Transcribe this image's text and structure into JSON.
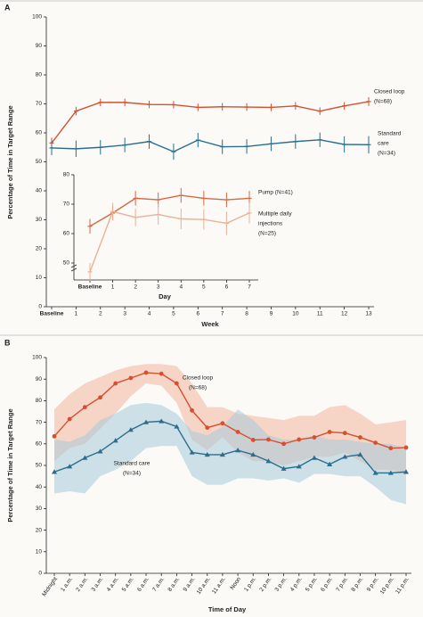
{
  "chart_data": [
    {
      "type": "line",
      "panel_label": "A",
      "y_label": "Percentage of Time in Target Range",
      "x_label": "Week",
      "categories": [
        "Baseline",
        "1",
        "2",
        "3",
        "4",
        "5",
        "6",
        "7",
        "8",
        "9",
        "10",
        "11",
        "12",
        "13"
      ],
      "ylim": [
        0,
        100
      ],
      "yticks": [
        0,
        10,
        20,
        30,
        40,
        50,
        60,
        70,
        80,
        90,
        100
      ],
      "series": [
        {
          "label_lines": [
            "Closed loop",
            "(N=68)"
          ],
          "color": "#d4502f",
          "marker": "tick",
          "values": [
            56.5,
            67.5,
            70.5,
            70.5,
            69.8,
            69.7,
            68.8,
            69,
            68.9,
            68.8,
            69.3,
            67.5,
            69.3,
            70.8
          ],
          "errors": [
            1.8,
            1.5,
            1.3,
            1.3,
            1.3,
            1.3,
            1.3,
            1.3,
            1.3,
            1.3,
            1.3,
            1.3,
            1.3,
            1.5
          ]
        },
        {
          "label_lines": [
            "Standard",
            "care",
            "(N=34)"
          ],
          "color": "#2a6e8e",
          "marker": "tick",
          "values": [
            54.8,
            54.5,
            55,
            55.8,
            57,
            53.5,
            57.5,
            55.2,
            55.3,
            56.2,
            57,
            57.6,
            56,
            55.9
          ],
          "errors": [
            2.5,
            2.8,
            2.5,
            2.5,
            2.5,
            2.8,
            2.5,
            2.5,
            2.5,
            2.5,
            2.5,
            2.5,
            2.8,
            3
          ]
        }
      ]
    },
    {
      "type": "line",
      "x_label": "Day",
      "categories": [
        "Baseline",
        "1",
        "2",
        "3",
        "4",
        "5",
        "6",
        "7"
      ],
      "ylim": [
        45,
        80
      ],
      "yticks": [
        50,
        60,
        70,
        80
      ],
      "series": [
        {
          "label_lines": [
            "Pump (N=41)"
          ],
          "color": "#d46a45",
          "marker": "tick",
          "values": [
            62.5,
            67,
            72,
            71.5,
            73,
            72,
            71.5,
            72
          ],
          "errors": [
            2.5,
            2.5,
            2.5,
            2.5,
            2.5,
            2.5,
            2.5,
            2.5
          ]
        },
        {
          "label_lines": [
            "Multiple daily",
            "injections",
            "(N=25)"
          ],
          "color": "#e8b198",
          "marker": "tick",
          "values": [
            47,
            67.5,
            65.5,
            66.5,
            65,
            64.8,
            63.5,
            67
          ],
          "errors": [
            3,
            3,
            3,
            3.5,
            3.5,
            3.5,
            4,
            3.5
          ]
        }
      ]
    },
    {
      "type": "line",
      "panel_label": "B",
      "y_label": "Percentage of Time in Target Range",
      "x_label": "Time of Day",
      "categories": [
        "Midnight",
        "1 a.m.",
        "2 a.m.",
        "3 a.m.",
        "4 a.m.",
        "5 a.m.",
        "6 a.m.",
        "7 a.m.",
        "8 a.m.",
        "9 a.m.",
        "10 a.m.",
        "11 a.m.",
        "Noon",
        "1 p.m.",
        "2 p.m.",
        "3 p.m.",
        "4 p.m.",
        "5 p.m.",
        "6 p.m.",
        "7 p.m.",
        "8 p.m.",
        "9 p.m.",
        "10 p.m.",
        "11 p.m."
      ],
      "ylim": [
        0,
        100
      ],
      "yticks": [
        0,
        10,
        20,
        30,
        40,
        50,
        60,
        70,
        80,
        90,
        100
      ],
      "series": [
        {
          "label_lines": [
            "Closed loop",
            "(N=68)"
          ],
          "color": "#d4502f",
          "band_color": "#f2b6a0",
          "marker": "circle",
          "values": [
            63.5,
            71.5,
            77,
            81.5,
            88,
            90.5,
            93,
            92.5,
            88,
            75.5,
            67.5,
            69.5,
            65.5,
            61.8,
            62,
            60,
            62,
            63,
            65.5,
            65,
            63,
            60.5,
            58,
            58.3
          ],
          "upper": [
            76,
            83,
            88,
            91,
            94,
            96,
            97,
            97,
            96,
            88,
            77,
            77,
            74,
            73,
            72,
            71,
            73,
            73,
            77,
            78,
            74,
            69,
            70,
            71
          ],
          "lower": [
            52,
            58,
            60,
            67,
            74,
            82,
            88,
            87,
            79,
            62,
            57,
            63,
            56,
            52,
            52,
            50,
            52,
            54,
            54,
            56,
            52,
            48,
            48,
            46
          ]
        },
        {
          "label_lines": [
            "Standard care",
            "(N=34)"
          ],
          "color": "#2a6e8e",
          "band_color": "#a9cadb",
          "marker": "triangle",
          "values": [
            47,
            49.5,
            53.5,
            56.5,
            61.5,
            66.5,
            70,
            70.5,
            68,
            56,
            55,
            55,
            57,
            55,
            52,
            48.5,
            49.5,
            53.5,
            50.5,
            54,
            55,
            46.5,
            46.5,
            47
          ],
          "upper": [
            62,
            61,
            64,
            71,
            74,
            78,
            79,
            78,
            74,
            66,
            64,
            68,
            76,
            71,
            64,
            62,
            62,
            64,
            62,
            62,
            61,
            60,
            60,
            58
          ],
          "lower": [
            37,
            38,
            37,
            45,
            48,
            52,
            58,
            59,
            59,
            45,
            41,
            41,
            44,
            44,
            43,
            44,
            42,
            46,
            46,
            45,
            45,
            40,
            34,
            32
          ]
        }
      ]
    }
  ]
}
